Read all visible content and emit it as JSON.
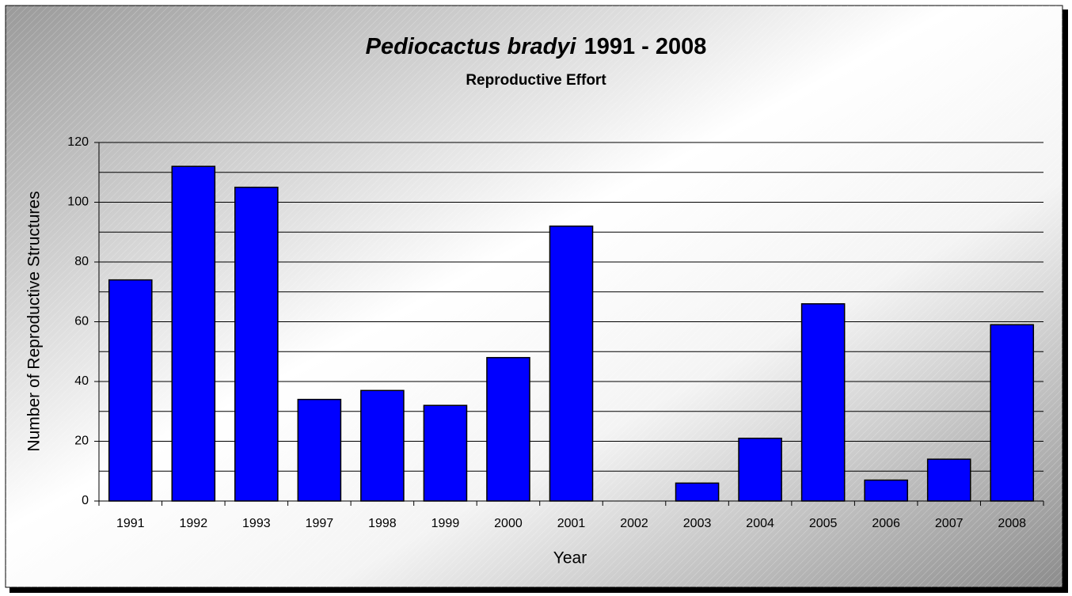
{
  "chart_data": {
    "type": "bar",
    "title": {
      "species": "Pediocactus bradyi",
      "years": "1991 - 2008"
    },
    "subtitle": "Reproductive Effort",
    "x_label": "Year",
    "y_label": "Number of Reproductive Structures",
    "categories": [
      "1991",
      "1992",
      "1993",
      "1997",
      "1998",
      "1999",
      "2000",
      "2001",
      "2002",
      "2003",
      "2004",
      "2005",
      "2006",
      "2007",
      "2008"
    ],
    "values": [
      74,
      112,
      105,
      34,
      37,
      32,
      48,
      92,
      0,
      6,
      21,
      66,
      7,
      14,
      59
    ],
    "color": "#0000ff",
    "ylim": [
      0,
      120
    ],
    "yticks": [
      0,
      20,
      40,
      60,
      80,
      100,
      120
    ],
    "minor_yticks": [
      10,
      30,
      50,
      70,
      90,
      110
    ],
    "grid": true
  }
}
